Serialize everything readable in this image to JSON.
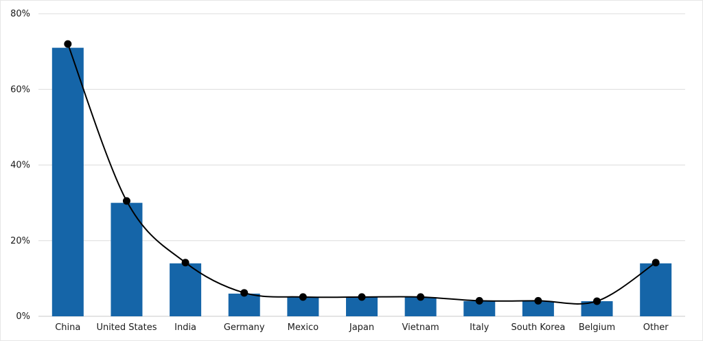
{
  "chart_data": {
    "type": "bar",
    "title": "",
    "xlabel": "",
    "ylabel": "",
    "ylim": [
      0,
      80
    ],
    "yticks": [
      "0%",
      "20%",
      "40%",
      "60%",
      "80%"
    ],
    "yticks_values": [
      0,
      20,
      40,
      60,
      80
    ],
    "categories": [
      "China",
      "United States",
      "India",
      "Germany",
      "Mexico",
      "Japan",
      "Vietnam",
      "Italy",
      "South Korea",
      "Belgium",
      "Other"
    ],
    "series": [
      {
        "kind": "bar",
        "values": [
          71,
          30,
          14,
          6,
          5,
          5,
          5,
          4,
          4,
          4,
          14
        ],
        "color": "#1565a8"
      },
      {
        "kind": "line",
        "values": [
          72,
          30.5,
          14.2,
          6.2,
          5.1,
          5.1,
          5.1,
          4.1,
          4.1,
          4.0,
          14.2
        ],
        "color": "#000000"
      }
    ],
    "grid": true,
    "legend": "none"
  }
}
